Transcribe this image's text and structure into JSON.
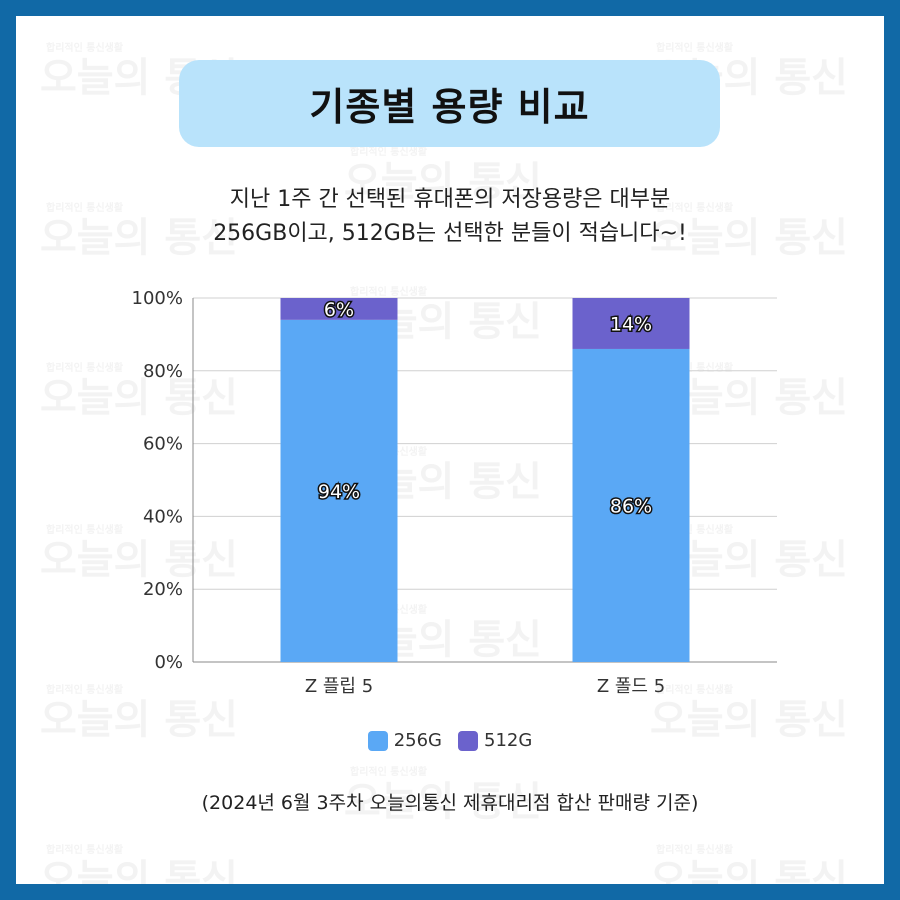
{
  "title": "기종별 용량 비교",
  "subtitle_line1": "지난 1주 간 선택된 휴대폰의 저장용량은 대부분",
  "subtitle_line2": "256GB이고, 512GB는 선택한 분들이 적습니다~!",
  "footnote": "(2024년 6월 3주차 오늘의통신 제휴대리점 합산 판매량 기준)",
  "watermark": {
    "small": "합리적인 통신생활",
    "big": "오늘의 통신"
  },
  "colors": {
    "border": "#1169a6",
    "title_bg": "#b9e3fb",
    "series_256": "#5aa8f5",
    "series_512": "#6b62cc"
  },
  "chart_data": {
    "type": "bar",
    "stacked": true,
    "categories": [
      "Z 플립 5",
      "Z 폴드 5"
    ],
    "series": [
      {
        "name": "256G",
        "values": [
          94,
          86
        ],
        "labels": [
          "94%",
          "86%"
        ]
      },
      {
        "name": "512G",
        "values": [
          6,
          14
        ],
        "labels": [
          "6%",
          "14%"
        ]
      }
    ],
    "ylim": [
      0,
      100
    ],
    "yticks": [
      "0%",
      "20%",
      "40%",
      "60%",
      "80%",
      "100%"
    ],
    "grid": true,
    "legend_position": "bottom"
  }
}
